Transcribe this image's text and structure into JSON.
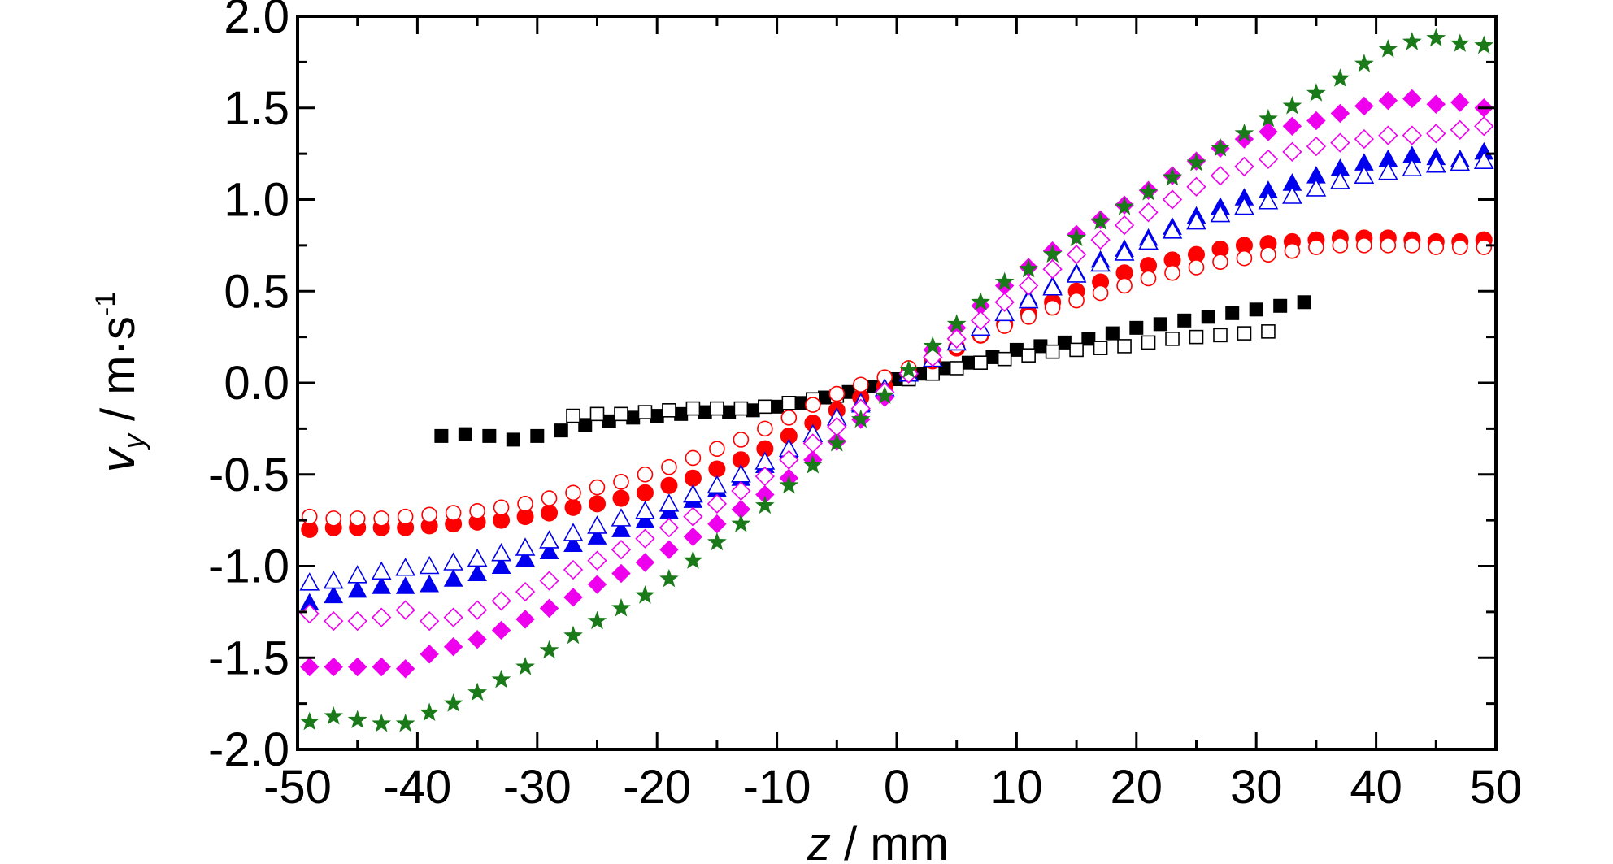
{
  "chart_data": {
    "type": "scatter",
    "xlabel": {
      "var": "z",
      "unit": " / mm"
    },
    "ylabel": {
      "var": "v",
      "subscript": "y",
      "unit": " / m·s",
      "superscript": "-1"
    },
    "xlim": [
      -50,
      50
    ],
    "ylim": [
      -2.0,
      2.0
    ],
    "xticks": [
      -50,
      -40,
      -30,
      -20,
      -10,
      0,
      10,
      20,
      30,
      40,
      50
    ],
    "yticks": [
      2.0,
      1.5,
      1.0,
      0.5,
      0.0,
      -0.5,
      -1.0,
      -1.5,
      -2.0
    ],
    "xtick_labels": [
      "-50",
      "-40",
      "-30",
      "-20",
      "-10",
      "0",
      "10",
      "20",
      "30",
      "40",
      "50"
    ],
    "ytick_labels": [
      "2.0",
      "1.5",
      "1.0",
      "0.5",
      "0.0",
      "-0.5",
      "-1.0",
      "-1.5",
      "-2.0"
    ],
    "grid": false,
    "series": [
      {
        "marker": "square",
        "filled": true,
        "color": "#000000",
        "x": [
          -38,
          -36,
          -34,
          -32,
          -30,
          -28,
          -26,
          -24,
          -22,
          -20,
          -18,
          -16,
          -14,
          -12,
          -10,
          -8,
          -6,
          -4,
          -2,
          0,
          2,
          4,
          6,
          8,
          10,
          12,
          14,
          16,
          18,
          20,
          22,
          24,
          26,
          28,
          30,
          32,
          34
        ],
        "y": [
          -0.29,
          -0.28,
          -0.29,
          -0.31,
          -0.29,
          -0.26,
          -0.23,
          -0.21,
          -0.19,
          -0.18,
          -0.17,
          -0.16,
          -0.16,
          -0.15,
          -0.13,
          -0.11,
          -0.08,
          -0.05,
          -0.02,
          0.02,
          0.05,
          0.08,
          0.11,
          0.14,
          0.18,
          0.2,
          0.22,
          0.24,
          0.27,
          0.3,
          0.32,
          0.34,
          0.36,
          0.38,
          0.4,
          0.42,
          0.44
        ]
      },
      {
        "marker": "square",
        "filled": false,
        "color": "#000000",
        "x": [
          -27,
          -25,
          -23,
          -21,
          -19,
          -17,
          -15,
          -13,
          -11,
          -9,
          -7,
          -5,
          -3,
          -1,
          1,
          3,
          5,
          7,
          9,
          11,
          13,
          15,
          17,
          19,
          21,
          23,
          25,
          27,
          29,
          31
        ],
        "y": [
          -0.18,
          -0.17,
          -0.17,
          -0.16,
          -0.15,
          -0.14,
          -0.14,
          -0.14,
          -0.13,
          -0.11,
          -0.09,
          -0.07,
          -0.04,
          -0.01,
          0.02,
          0.05,
          0.08,
          0.11,
          0.13,
          0.15,
          0.17,
          0.18,
          0.19,
          0.2,
          0.22,
          0.24,
          0.25,
          0.26,
          0.27,
          0.28
        ]
      },
      {
        "marker": "circle",
        "filled": true,
        "color": "#ff0000",
        "x": [
          -49,
          -47,
          -45,
          -43,
          -41,
          -39,
          -37,
          -35,
          -33,
          -31,
          -29,
          -27,
          -25,
          -23,
          -21,
          -19,
          -17,
          -15,
          -13,
          -11,
          -9,
          -7,
          -5,
          -3,
          -1,
          1,
          3,
          5,
          7,
          9,
          11,
          13,
          15,
          17,
          19,
          21,
          23,
          25,
          27,
          29,
          31,
          33,
          35,
          37,
          39,
          41,
          43,
          45,
          47,
          49
        ],
        "y": [
          -0.8,
          -0.79,
          -0.79,
          -0.79,
          -0.79,
          -0.78,
          -0.77,
          -0.76,
          -0.75,
          -0.73,
          -0.71,
          -0.68,
          -0.66,
          -0.63,
          -0.6,
          -0.56,
          -0.52,
          -0.47,
          -0.42,
          -0.36,
          -0.29,
          -0.22,
          -0.15,
          -0.08,
          -0.02,
          0.05,
          0.12,
          0.19,
          0.26,
          0.32,
          0.38,
          0.44,
          0.5,
          0.55,
          0.6,
          0.64,
          0.67,
          0.7,
          0.73,
          0.75,
          0.76,
          0.77,
          0.78,
          0.79,
          0.79,
          0.79,
          0.78,
          0.77,
          0.77,
          0.78
        ]
      },
      {
        "marker": "circle",
        "filled": false,
        "color": "#ff0000",
        "x": [
          -49,
          -47,
          -45,
          -43,
          -41,
          -39,
          -37,
          -35,
          -33,
          -31,
          -29,
          -27,
          -25,
          -23,
          -21,
          -19,
          -17,
          -15,
          -13,
          -11,
          -9,
          -7,
          -5,
          -3,
          -1,
          1,
          3,
          5,
          7,
          9,
          11,
          13,
          15,
          17,
          19,
          21,
          23,
          25,
          27,
          29,
          31,
          33,
          35,
          37,
          39,
          41,
          43,
          45,
          47,
          49
        ],
        "y": [
          -0.73,
          -0.74,
          -0.74,
          -0.74,
          -0.73,
          -0.72,
          -0.71,
          -0.7,
          -0.68,
          -0.66,
          -0.63,
          -0.6,
          -0.57,
          -0.54,
          -0.5,
          -0.46,
          -0.41,
          -0.36,
          -0.31,
          -0.25,
          -0.19,
          -0.12,
          -0.06,
          -0.01,
          0.03,
          0.08,
          0.14,
          0.2,
          0.26,
          0.31,
          0.36,
          0.41,
          0.45,
          0.49,
          0.53,
          0.57,
          0.6,
          0.63,
          0.66,
          0.68,
          0.7,
          0.72,
          0.74,
          0.75,
          0.75,
          0.75,
          0.75,
          0.74,
          0.74,
          0.74
        ]
      },
      {
        "marker": "triangle",
        "filled": true,
        "color": "#0000ee",
        "x": [
          -49,
          -47,
          -45,
          -43,
          -41,
          -39,
          -37,
          -35,
          -33,
          -31,
          -29,
          -27,
          -25,
          -23,
          -21,
          -19,
          -17,
          -15,
          -13,
          -11,
          -9,
          -7,
          -5,
          -3,
          -1,
          1,
          3,
          5,
          7,
          9,
          11,
          13,
          15,
          17,
          19,
          21,
          23,
          25,
          27,
          29,
          31,
          33,
          35,
          37,
          39,
          41,
          43,
          45,
          47,
          49
        ],
        "y": [
          -1.2,
          -1.16,
          -1.13,
          -1.11,
          -1.11,
          -1.1,
          -1.07,
          -1.04,
          -1.0,
          -0.96,
          -0.92,
          -0.88,
          -0.84,
          -0.8,
          -0.75,
          -0.7,
          -0.64,
          -0.58,
          -0.52,
          -0.45,
          -0.37,
          -0.29,
          -0.2,
          -0.12,
          -0.04,
          0.05,
          0.13,
          0.22,
          0.3,
          0.38,
          0.46,
          0.53,
          0.6,
          0.67,
          0.73,
          0.79,
          0.85,
          0.91,
          0.96,
          1.01,
          1.05,
          1.09,
          1.13,
          1.17,
          1.2,
          1.22,
          1.24,
          1.23,
          1.22,
          1.26
        ]
      },
      {
        "marker": "triangle",
        "filled": false,
        "color": "#0000ee",
        "x": [
          -49,
          -47,
          -45,
          -43,
          -41,
          -39,
          -37,
          -35,
          -33,
          -31,
          -29,
          -27,
          -25,
          -23,
          -21,
          -19,
          -17,
          -15,
          -13,
          -11,
          -9,
          -7,
          -5,
          -3,
          -1,
          1,
          3,
          5,
          7,
          9,
          11,
          13,
          15,
          17,
          19,
          21,
          23,
          25,
          27,
          29,
          31,
          33,
          35,
          37,
          39,
          41,
          43,
          45,
          47,
          49
        ],
        "y": [
          -1.09,
          -1.08,
          -1.05,
          -1.03,
          -1.01,
          -1.0,
          -0.98,
          -0.96,
          -0.93,
          -0.9,
          -0.86,
          -0.82,
          -0.78,
          -0.74,
          -0.7,
          -0.66,
          -0.61,
          -0.56,
          -0.5,
          -0.43,
          -0.36,
          -0.28,
          -0.19,
          -0.11,
          -0.03,
          0.05,
          0.13,
          0.22,
          0.3,
          0.38,
          0.45,
          0.52,
          0.59,
          0.65,
          0.71,
          0.77,
          0.83,
          0.88,
          0.92,
          0.96,
          0.99,
          1.02,
          1.06,
          1.1,
          1.13,
          1.15,
          1.17,
          1.19,
          1.2,
          1.21
        ]
      },
      {
        "marker": "diamond",
        "filled": true,
        "color": "#ee00ee",
        "x": [
          -49,
          -47,
          -45,
          -43,
          -41,
          -39,
          -37,
          -35,
          -33,
          -31,
          -29,
          -27,
          -25,
          -23,
          -21,
          -19,
          -17,
          -15,
          -13,
          -11,
          -9,
          -7,
          -5,
          -3,
          -1,
          1,
          3,
          5,
          7,
          9,
          11,
          13,
          15,
          17,
          19,
          21,
          23,
          25,
          27,
          29,
          31,
          33,
          35,
          37,
          39,
          41,
          43,
          45,
          47,
          49
        ],
        "y": [
          -1.55,
          -1.55,
          -1.55,
          -1.55,
          -1.56,
          -1.48,
          -1.44,
          -1.4,
          -1.35,
          -1.29,
          -1.23,
          -1.17,
          -1.1,
          -1.04,
          -0.98,
          -0.91,
          -0.84,
          -0.77,
          -0.69,
          -0.61,
          -0.52,
          -0.42,
          -0.32,
          -0.2,
          -0.08,
          0.05,
          0.18,
          0.3,
          0.42,
          0.53,
          0.63,
          0.72,
          0.81,
          0.89,
          0.97,
          1.05,
          1.13,
          1.21,
          1.28,
          1.33,
          1.37,
          1.4,
          1.43,
          1.47,
          1.51,
          1.54,
          1.55,
          1.52,
          1.53,
          1.5
        ]
      },
      {
        "marker": "diamond",
        "filled": false,
        "color": "#ee00ee",
        "x": [
          -49,
          -47,
          -45,
          -43,
          -41,
          -39,
          -37,
          -35,
          -33,
          -31,
          -29,
          -27,
          -25,
          -23,
          -21,
          -19,
          -17,
          -15,
          -13,
          -11,
          -9,
          -7,
          -5,
          -3,
          -1,
          1,
          3,
          5,
          7,
          9,
          11,
          13,
          15,
          17,
          19,
          21,
          23,
          25,
          27,
          29,
          31,
          33,
          35,
          37,
          39,
          41,
          43,
          45,
          47,
          49
        ],
        "y": [
          -1.26,
          -1.3,
          -1.3,
          -1.28,
          -1.24,
          -1.3,
          -1.28,
          -1.24,
          -1.19,
          -1.14,
          -1.08,
          -1.02,
          -0.97,
          -0.91,
          -0.85,
          -0.79,
          -0.73,
          -0.66,
          -0.59,
          -0.51,
          -0.42,
          -0.33,
          -0.24,
          -0.14,
          -0.05,
          0.05,
          0.14,
          0.24,
          0.34,
          0.44,
          0.53,
          0.62,
          0.7,
          0.78,
          0.86,
          0.93,
          1.0,
          1.07,
          1.13,
          1.18,
          1.22,
          1.26,
          1.29,
          1.31,
          1.33,
          1.35,
          1.35,
          1.36,
          1.38,
          1.4
        ]
      },
      {
        "marker": "star",
        "filled": true,
        "color": "#1a7a1a",
        "x": [
          -49,
          -47,
          -45,
          -43,
          -41,
          -39,
          -37,
          -35,
          -33,
          -31,
          -29,
          -27,
          -25,
          -23,
          -21,
          -19,
          -17,
          -15,
          -13,
          -11,
          -9,
          -7,
          -5,
          -3,
          -1,
          1,
          3,
          5,
          7,
          9,
          11,
          13,
          15,
          17,
          19,
          21,
          23,
          25,
          27,
          29,
          31,
          33,
          35,
          37,
          39,
          41,
          43,
          45,
          47,
          49
        ],
        "y": [
          -1.85,
          -1.82,
          -1.84,
          -1.86,
          -1.86,
          -1.8,
          -1.75,
          -1.69,
          -1.62,
          -1.55,
          -1.46,
          -1.38,
          -1.3,
          -1.23,
          -1.16,
          -1.07,
          -0.97,
          -0.87,
          -0.77,
          -0.67,
          -0.56,
          -0.45,
          -0.33,
          -0.2,
          -0.07,
          0.07,
          0.2,
          0.32,
          0.44,
          0.55,
          0.62,
          0.7,
          0.79,
          0.88,
          0.96,
          1.04,
          1.12,
          1.2,
          1.28,
          1.36,
          1.44,
          1.51,
          1.58,
          1.66,
          1.74,
          1.82,
          1.86,
          1.88,
          1.85,
          1.84
        ]
      }
    ]
  }
}
